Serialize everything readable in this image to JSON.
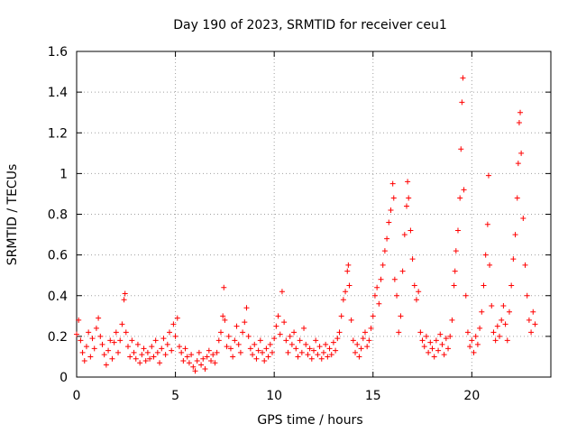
{
  "chart_data": {
    "type": "scatter",
    "title": "Day 190 of 2023, SRMTID for receiver ceu1",
    "xlabel": "GPS time / hours",
    "ylabel": "SRMTID / TECUs",
    "xlim": [
      0,
      24
    ],
    "ylim": [
      0,
      1.6
    ],
    "xticks": [
      0,
      5,
      10,
      15,
      20
    ],
    "xtick_labels": [
      "0",
      "5",
      "10",
      "15",
      "20"
    ],
    "yticks": [
      0,
      0.2,
      0.4,
      0.6,
      0.8,
      1.0,
      1.2,
      1.4,
      1.6
    ],
    "ytick_labels": [
      "0",
      "0.2",
      "0.4",
      "0.6",
      "0.8",
      "1",
      "1.2",
      "1.4",
      "1.6"
    ],
    "grid": true,
    "marker": "+",
    "marker_color": "#ff0000",
    "series": [
      {
        "name": "SRMTID",
        "points": [
          [
            0.0,
            0.21
          ],
          [
            0.1,
            0.28
          ],
          [
            0.2,
            0.18
          ],
          [
            0.3,
            0.12
          ],
          [
            0.4,
            0.08
          ],
          [
            0.5,
            0.15
          ],
          [
            0.6,
            0.22
          ],
          [
            0.7,
            0.1
          ],
          [
            0.8,
            0.19
          ],
          [
            0.9,
            0.14
          ],
          [
            1.0,
            0.24
          ],
          [
            1.1,
            0.29
          ],
          [
            1.2,
            0.2
          ],
          [
            1.3,
            0.16
          ],
          [
            1.4,
            0.11
          ],
          [
            1.5,
            0.06
          ],
          [
            1.6,
            0.13
          ],
          [
            1.7,
            0.18
          ],
          [
            1.8,
            0.09
          ],
          [
            1.9,
            0.17
          ],
          [
            2.0,
            0.22
          ],
          [
            2.1,
            0.12
          ],
          [
            2.2,
            0.18
          ],
          [
            2.3,
            0.26
          ],
          [
            2.4,
            0.38
          ],
          [
            2.45,
            0.41
          ],
          [
            2.5,
            0.22
          ],
          [
            2.6,
            0.15
          ],
          [
            2.7,
            0.1
          ],
          [
            2.8,
            0.18
          ],
          [
            2.9,
            0.12
          ],
          [
            3.0,
            0.09
          ],
          [
            3.1,
            0.16
          ],
          [
            3.2,
            0.07
          ],
          [
            3.3,
            0.11
          ],
          [
            3.4,
            0.14
          ],
          [
            3.5,
            0.08
          ],
          [
            3.6,
            0.12
          ],
          [
            3.7,
            0.09
          ],
          [
            3.8,
            0.15
          ],
          [
            3.9,
            0.1
          ],
          [
            4.0,
            0.18
          ],
          [
            4.1,
            0.12
          ],
          [
            4.2,
            0.07
          ],
          [
            4.3,
            0.14
          ],
          [
            4.4,
            0.19
          ],
          [
            4.5,
            0.11
          ],
          [
            4.6,
            0.16
          ],
          [
            4.7,
            0.22
          ],
          [
            4.8,
            0.13
          ],
          [
            4.9,
            0.26
          ],
          [
            5.0,
            0.2
          ],
          [
            5.1,
            0.29
          ],
          [
            5.2,
            0.15
          ],
          [
            5.3,
            0.12
          ],
          [
            5.4,
            0.08
          ],
          [
            5.5,
            0.14
          ],
          [
            5.6,
            0.1
          ],
          [
            5.7,
            0.07
          ],
          [
            5.8,
            0.11
          ],
          [
            5.9,
            0.05
          ],
          [
            6.0,
            0.03
          ],
          [
            6.1,
            0.08
          ],
          [
            6.2,
            0.12
          ],
          [
            6.3,
            0.06
          ],
          [
            6.4,
            0.09
          ],
          [
            6.5,
            0.04
          ],
          [
            6.6,
            0.1
          ],
          [
            6.7,
            0.13
          ],
          [
            6.8,
            0.08
          ],
          [
            6.9,
            0.11
          ],
          [
            7.0,
            0.07
          ],
          [
            7.1,
            0.12
          ],
          [
            7.2,
            0.18
          ],
          [
            7.3,
            0.22
          ],
          [
            7.4,
            0.3
          ],
          [
            7.45,
            0.44
          ],
          [
            7.5,
            0.28
          ],
          [
            7.6,
            0.15
          ],
          [
            7.7,
            0.2
          ],
          [
            7.8,
            0.14
          ],
          [
            7.9,
            0.1
          ],
          [
            8.0,
            0.18
          ],
          [
            8.1,
            0.25
          ],
          [
            8.2,
            0.16
          ],
          [
            8.3,
            0.12
          ],
          [
            8.4,
            0.22
          ],
          [
            8.5,
            0.27
          ],
          [
            8.6,
            0.34
          ],
          [
            8.7,
            0.2
          ],
          [
            8.8,
            0.14
          ],
          [
            8.9,
            0.11
          ],
          [
            9.0,
            0.16
          ],
          [
            9.1,
            0.09
          ],
          [
            9.2,
            0.13
          ],
          [
            9.3,
            0.18
          ],
          [
            9.4,
            0.12
          ],
          [
            9.5,
            0.08
          ],
          [
            9.6,
            0.14
          ],
          [
            9.7,
            0.1
          ],
          [
            9.8,
            0.16
          ],
          [
            9.9,
            0.12
          ],
          [
            10.0,
            0.19
          ],
          [
            10.1,
            0.25
          ],
          [
            10.2,
            0.3
          ],
          [
            10.3,
            0.21
          ],
          [
            10.4,
            0.42
          ],
          [
            10.5,
            0.27
          ],
          [
            10.6,
            0.18
          ],
          [
            10.7,
            0.12
          ],
          [
            10.8,
            0.2
          ],
          [
            10.9,
            0.16
          ],
          [
            11.0,
            0.22
          ],
          [
            11.1,
            0.14
          ],
          [
            11.2,
            0.1
          ],
          [
            11.3,
            0.18
          ],
          [
            11.4,
            0.12
          ],
          [
            11.5,
            0.24
          ],
          [
            11.6,
            0.16
          ],
          [
            11.7,
            0.11
          ],
          [
            11.8,
            0.14
          ],
          [
            11.9,
            0.09
          ],
          [
            12.0,
            0.13
          ],
          [
            12.1,
            0.18
          ],
          [
            12.2,
            0.11
          ],
          [
            12.3,
            0.15
          ],
          [
            12.4,
            0.09
          ],
          [
            12.5,
            0.12
          ],
          [
            12.6,
            0.16
          ],
          [
            12.7,
            0.1
          ],
          [
            12.8,
            0.14
          ],
          [
            12.9,
            0.11
          ],
          [
            13.0,
            0.17
          ],
          [
            13.1,
            0.13
          ],
          [
            13.2,
            0.19
          ],
          [
            13.3,
            0.22
          ],
          [
            13.4,
            0.3
          ],
          [
            13.5,
            0.38
          ],
          [
            13.6,
            0.42
          ],
          [
            13.7,
            0.52
          ],
          [
            13.75,
            0.55
          ],
          [
            13.8,
            0.45
          ],
          [
            13.9,
            0.28
          ],
          [
            14.0,
            0.18
          ],
          [
            14.1,
            0.12
          ],
          [
            14.2,
            0.16
          ],
          [
            14.3,
            0.1
          ],
          [
            14.4,
            0.14
          ],
          [
            14.5,
            0.19
          ],
          [
            14.6,
            0.22
          ],
          [
            14.7,
            0.15
          ],
          [
            14.8,
            0.18
          ],
          [
            14.9,
            0.24
          ],
          [
            15.0,
            0.3
          ],
          [
            15.1,
            0.4
          ],
          [
            15.2,
            0.44
          ],
          [
            15.3,
            0.36
          ],
          [
            15.4,
            0.48
          ],
          [
            15.5,
            0.55
          ],
          [
            15.6,
            0.62
          ],
          [
            15.7,
            0.68
          ],
          [
            15.8,
            0.76
          ],
          [
            15.9,
            0.82
          ],
          [
            16.0,
            0.95
          ],
          [
            16.05,
            0.88
          ],
          [
            16.1,
            0.48
          ],
          [
            16.2,
            0.4
          ],
          [
            16.3,
            0.22
          ],
          [
            16.4,
            0.3
          ],
          [
            16.5,
            0.52
          ],
          [
            16.6,
            0.7
          ],
          [
            16.7,
            0.84
          ],
          [
            16.75,
            0.96
          ],
          [
            16.8,
            0.88
          ],
          [
            16.9,
            0.72
          ],
          [
            17.0,
            0.58
          ],
          [
            17.1,
            0.45
          ],
          [
            17.2,
            0.38
          ],
          [
            17.3,
            0.42
          ],
          [
            17.4,
            0.22
          ],
          [
            17.5,
            0.18
          ],
          [
            17.6,
            0.15
          ],
          [
            17.7,
            0.2
          ],
          [
            17.8,
            0.12
          ],
          [
            17.9,
            0.17
          ],
          [
            18.0,
            0.14
          ],
          [
            18.1,
            0.1
          ],
          [
            18.2,
            0.18
          ],
          [
            18.3,
            0.13
          ],
          [
            18.4,
            0.21
          ],
          [
            18.5,
            0.16
          ],
          [
            18.6,
            0.11
          ],
          [
            18.7,
            0.19
          ],
          [
            18.8,
            0.14
          ],
          [
            18.9,
            0.2
          ],
          [
            19.0,
            0.28
          ],
          [
            19.1,
            0.45
          ],
          [
            19.15,
            0.52
          ],
          [
            19.2,
            0.62
          ],
          [
            19.3,
            0.72
          ],
          [
            19.4,
            0.88
          ],
          [
            19.45,
            1.12
          ],
          [
            19.5,
            1.35
          ],
          [
            19.55,
            1.47
          ],
          [
            19.6,
            0.92
          ],
          [
            19.7,
            0.4
          ],
          [
            19.8,
            0.22
          ],
          [
            19.9,
            0.15
          ],
          [
            20.0,
            0.18
          ],
          [
            20.1,
            0.12
          ],
          [
            20.2,
            0.2
          ],
          [
            20.3,
            0.16
          ],
          [
            20.4,
            0.24
          ],
          [
            20.5,
            0.32
          ],
          [
            20.6,
            0.45
          ],
          [
            20.7,
            0.6
          ],
          [
            20.8,
            0.75
          ],
          [
            20.85,
            0.99
          ],
          [
            20.9,
            0.55
          ],
          [
            21.0,
            0.35
          ],
          [
            21.1,
            0.22
          ],
          [
            21.2,
            0.18
          ],
          [
            21.3,
            0.25
          ],
          [
            21.4,
            0.2
          ],
          [
            21.5,
            0.28
          ],
          [
            21.6,
            0.35
          ],
          [
            21.7,
            0.26
          ],
          [
            21.8,
            0.18
          ],
          [
            21.9,
            0.32
          ],
          [
            22.0,
            0.45
          ],
          [
            22.1,
            0.58
          ],
          [
            22.2,
            0.7
          ],
          [
            22.3,
            0.88
          ],
          [
            22.35,
            1.05
          ],
          [
            22.4,
            1.25
          ],
          [
            22.45,
            1.3
          ],
          [
            22.5,
            1.1
          ],
          [
            22.6,
            0.78
          ],
          [
            22.7,
            0.55
          ],
          [
            22.8,
            0.4
          ],
          [
            22.9,
            0.28
          ],
          [
            23.0,
            0.22
          ],
          [
            23.1,
            0.32
          ],
          [
            23.2,
            0.26
          ]
        ]
      }
    ]
  }
}
